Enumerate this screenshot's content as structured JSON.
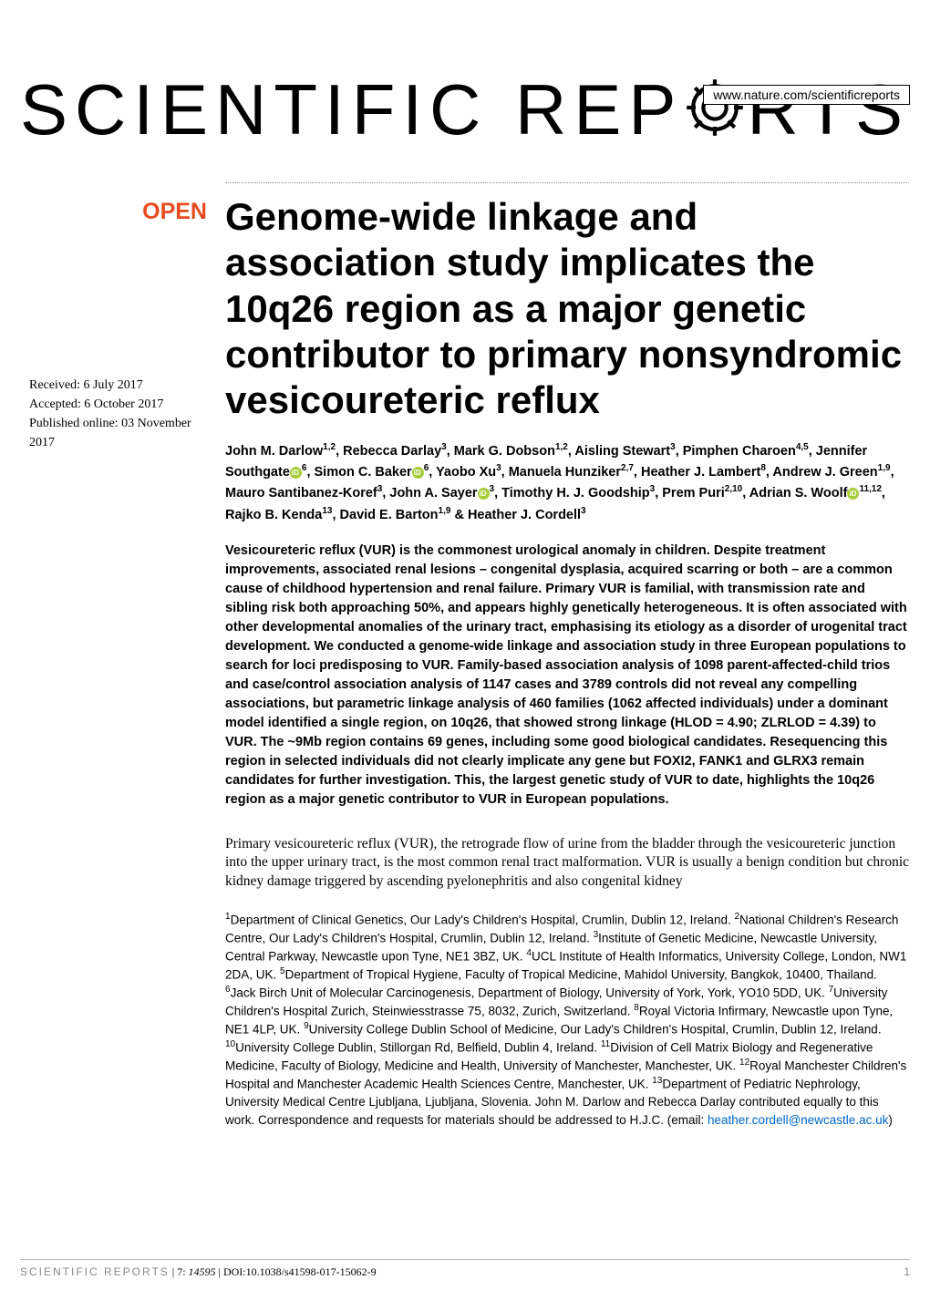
{
  "header": {
    "url": "www.nature.com/scientificreports"
  },
  "logo": {
    "text_left": "SCIENTIFIC ",
    "text_right": "RTS",
    "text_mid": "REP"
  },
  "badge": {
    "open": "OPEN"
  },
  "dates": {
    "received": "Received: 6 July 2017",
    "accepted": "Accepted: 6 October 2017",
    "published": "Published online: 03 November 2017"
  },
  "title": "Genome-wide linkage and association study implicates the 10q26 region as a major genetic contributor to primary nonsyndromic vesicoureteric reflux",
  "authors_html": "John M. Darlow<sup>1,2</sup>, Rebecca Darlay<sup>3</sup>, Mark G. Dobson<sup>1,2</sup>, Aisling Stewart<sup>3</sup>, Pimphen Charoen<sup>4,5</sup>, Jennifer Southgate<span class='orcid'></span><sup>6</sup>, Simon C. Baker<span class='orcid'></span><sup>6</sup>, Yaobo Xu<sup>3</sup>, Manuela Hunziker<sup>2,7</sup>, Heather J. Lambert<sup>8</sup>, Andrew J. Green<sup>1,9</sup>, Mauro Santibanez-Koref<sup>3</sup>, John A. Sayer<span class='orcid'></span><sup>3</sup>, Timothy H. J. Goodship<sup>3</sup>, Prem Puri<sup>2,10</sup>, Adrian S. Woolf<span class='orcid'></span><sup>11,12</sup>, Rajko B. Kenda<sup>13</sup>, David E. Barton<sup>1,9</sup> & Heather J. Cordell<sup>3</sup>",
  "abstract": "Vesicoureteric reflux (VUR) is the commonest urological anomaly in children. Despite treatment improvements, associated renal lesions – congenital dysplasia, acquired scarring or both – are a common cause of childhood hypertension and renal failure. Primary VUR is familial, with transmission rate and sibling risk both approaching 50%, and appears highly genetically heterogeneous. It is often associated with other developmental anomalies of the urinary tract, emphasising its etiology as a disorder of urogenital tract development. We conducted a genome-wide linkage and association study in three European populations to search for loci predisposing to VUR. Family-based association analysis of 1098 parent-affected-child trios and case/control association analysis of 1147 cases and 3789 controls did not reveal any compelling associations, but parametric linkage analysis of 460 families (1062 affected individuals) under a dominant model identified a single region, on 10q26, that showed strong linkage (HLOD = 4.90; ZLRLOD = 4.39) to VUR. The ~9Mb region contains 69 genes, including some good biological candidates. Resequencing this region in selected individuals did not clearly implicate any gene but FOXI2, FANK1 and GLRX3 remain candidates for further investigation. This, the largest genetic study of VUR to date, highlights the 10q26 region as a major genetic contributor to VUR in European populations.",
  "body": "Primary vesicoureteric reflux (VUR), the retrograde flow of urine from the bladder through the vesicoureteric junction into the upper urinary tract, is the most common renal tract malformation. VUR is usually a benign condition but chronic kidney damage triggered by ascending pyelonephritis and also congenital kidney",
  "affiliations_html": "<sup>1</sup>Department of Clinical Genetics, Our Lady's Children's Hospital, Crumlin, Dublin 12, Ireland. <sup>2</sup>National Children's Research Centre, Our Lady's Children's Hospital, Crumlin, Dublin 12, Ireland. <sup>3</sup>Institute of Genetic Medicine, Newcastle University, Central Parkway, Newcastle upon Tyne, NE1 3BZ, UK. <sup>4</sup>UCL Institute of Health Informatics, University College, London, NW1 2DA, UK. <sup>5</sup>Department of Tropical Hygiene, Faculty of Tropical Medicine, Mahidol University, Bangkok, 10400, Thailand. <sup>6</sup>Jack Birch Unit of Molecular Carcinogenesis, Department of Biology, University of York, York, YO10 5DD, UK. <sup>7</sup>University Children's Hospital Zurich, Steinwiesstrasse 75, 8032, Zurich, Switzerland. <sup>8</sup>Royal Victoria Infirmary, Newcastle upon Tyne, NE1 4LP, UK. <sup>9</sup>University College Dublin School of Medicine, Our Lady's Children's Hospital, Crumlin, Dublin 12, Ireland. <sup>10</sup>University College Dublin, Stillorgan Rd, Belfield, Dublin 4, Ireland. <sup>11</sup>Division of Cell Matrix Biology and Regenerative Medicine, Faculty of Biology, Medicine and Health, University of Manchester, Manchester, UK. <sup>12</sup>Royal Manchester Children's Hospital and Manchester Academic Health Sciences Centre, Manchester, UK. <sup>13</sup>Department of Pediatric Nephrology, University Medical Centre Ljubljana, Ljubljana, Slovenia. John M. Darlow and Rebecca Darlay contributed equally to this work. Correspondence and requests for materials should be addressed to H.J.C. (email: <span class='email-link'>heather.cordell@newcastle.ac.uk</span>)",
  "footer": {
    "journal": "SCIENTIFIC REPORTS",
    "citation_prefix": " | 7: ",
    "citation_vol": "14595",
    "citation_suffix": " | DOI:10.1038/s41598-017-15062-9",
    "page": "1"
  },
  "colors": {
    "open_badge": "#e84b1f",
    "orcid_green": "#a6ce39",
    "link_blue": "#0066cc",
    "footer_gray": "#888888"
  }
}
